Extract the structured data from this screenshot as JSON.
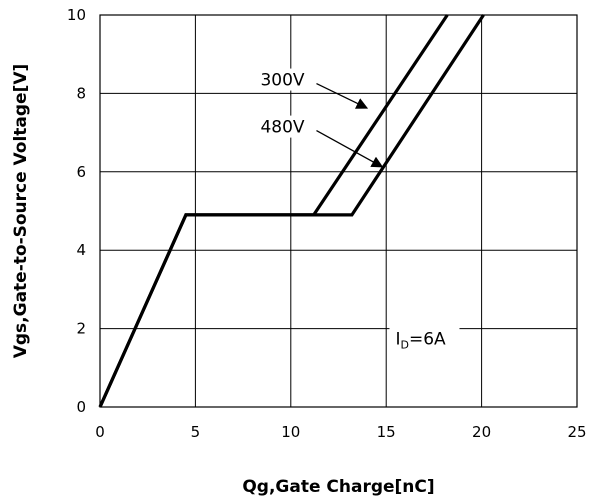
{
  "chart_data": {
    "type": "line",
    "xlabel": "Qg,Gate Charge[nC]",
    "ylabel": "Vgs,Gate-to-Source Voltage[V]",
    "xlim": [
      0,
      25
    ],
    "ylim": [
      0,
      10
    ],
    "x_ticks": [
      0,
      5,
      10,
      15,
      20,
      25
    ],
    "y_ticks": [
      0,
      2,
      4,
      6,
      8,
      10
    ],
    "grid": true,
    "series": [
      {
        "name": "300V",
        "points": [
          [
            0,
            0
          ],
          [
            4.5,
            4.9
          ],
          [
            11.2,
            4.9
          ],
          [
            18.2,
            10
          ]
        ]
      },
      {
        "name": "480V",
        "points": [
          [
            0,
            0
          ],
          [
            4.5,
            4.9
          ],
          [
            13.2,
            4.9
          ],
          [
            20.1,
            10
          ]
        ]
      }
    ],
    "annotations": [
      {
        "text_main": "I",
        "text_sub": "D",
        "text_rest": "=6A",
        "x": 15.8,
        "y": 1.6
      }
    ],
    "series_labels": [
      {
        "series": "300V",
        "text_x": 14.7,
        "text_y": 8.2,
        "arrow_to": [
          14.1,
          7.6
        ]
      },
      {
        "series": "480V",
        "text_x": 14.7,
        "text_y": 7.0,
        "arrow_to": [
          14.9,
          6.1
        ]
      }
    ]
  }
}
